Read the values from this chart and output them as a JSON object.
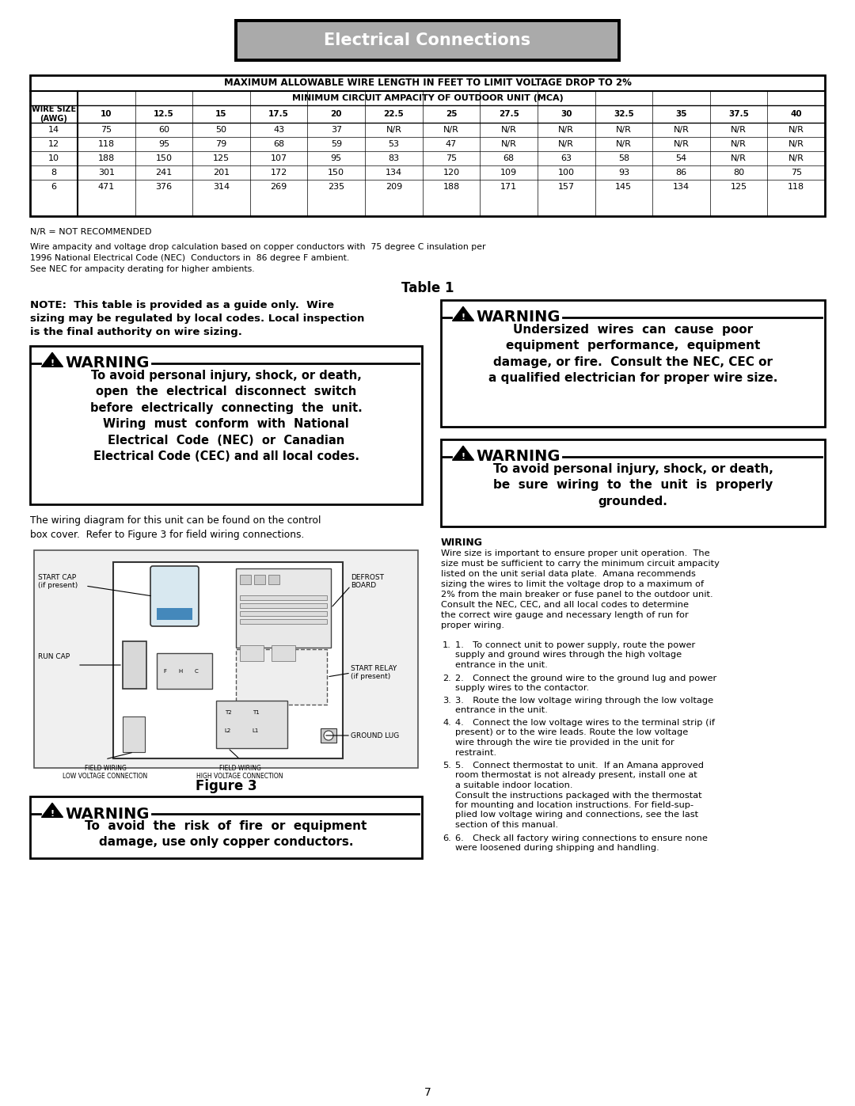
{
  "page_bg": "#ffffff",
  "title_text": "Electrical Connections",
  "table_title": "MAXIMUM ALLOWABLE WIRE LENGTH IN FEET TO LIMIT VOLTAGE DROP TO 2%",
  "table_subtitle": "MINIMUM CIRCUIT AMPACITY OF OUTDOOR UNIT (MCA)",
  "col_headers": [
    "WIRE SIZE\n(AWG)",
    "10",
    "12.5",
    "15",
    "17.5",
    "20",
    "22.5",
    "25",
    "27.5",
    "30",
    "32.5",
    "35",
    "37.5",
    "40"
  ],
  "table_data": [
    [
      "14",
      "75",
      "60",
      "50",
      "43",
      "37",
      "N/R",
      "N/R",
      "N/R",
      "N/R",
      "N/R",
      "N/R",
      "N/R",
      "N/R"
    ],
    [
      "12",
      "118",
      "95",
      "79",
      "68",
      "59",
      "53",
      "47",
      "N/R",
      "N/R",
      "N/R",
      "N/R",
      "N/R",
      "N/R"
    ],
    [
      "10",
      "188",
      "150",
      "125",
      "107",
      "95",
      "83",
      "75",
      "68",
      "63",
      "58",
      "54",
      "N/R",
      "N/R"
    ],
    [
      "8",
      "301",
      "241",
      "201",
      "172",
      "150",
      "134",
      "120",
      "109",
      "100",
      "93",
      "86",
      "80",
      "75"
    ],
    [
      "6",
      "471",
      "376",
      "314",
      "269",
      "235",
      "209",
      "188",
      "171",
      "157",
      "145",
      "134",
      "125",
      "118"
    ]
  ],
  "nr_note": "N/R = NOT RECOMMENDED",
  "footnote1": "Wire ampacity and voltage drop calculation based on copper conductors with  75 degree C insulation per",
  "footnote2": "1996 National Electrical Code (NEC)  Conductors in  86 degree F ambient.",
  "footnote3": "See NEC for ampacity derating for higher ambients.",
  "table1_label": "Table 1",
  "note_text": "NOTE:  This table is provided as a guide only.  Wire\nsizing may be regulated by local codes. Local inspection\nis the final authority on wire sizing.",
  "warn1_body": "To avoid personal injury, shock, or death,\nopen  the  electrical  disconnect  switch\nbefore  electrically  connecting  the  unit.\nWiring  must  conform  with  National\nElectrical  Code  (NEC)  or  Canadian\nElectrical Code (CEC) and all local codes.",
  "warn2_body": "Undersized  wires  can  cause  poor\nequipment  performance,  equipment\ndamage, or fire.  Consult the NEC, CEC or\na qualified electrician for proper wire size.",
  "warn3_body": "To avoid personal injury, shock, or death,\nbe  sure  wiring  to  the  unit  is  properly\ngrounded.",
  "wiring_intro": "The wiring diagram for this unit can be found on the control\nbox cover.  Refer to Figure 3 for field wiring connections.",
  "fig3_label": "Figure 3",
  "warn4_body": "To  avoid  the  risk  of  fire  or  equipment\ndamage, use only copper conductors.",
  "wiring_title": "WIRING",
  "wiring_text": "Wire size is important to ensure proper unit operation.  The\nsize must be sufficient to carry the minimum circuit ampacity\nlisted on the unit serial data plate.  Amana recommends\nsizing the wires to limit the voltage drop to a maximum of\n2% from the main breaker or fuse panel to the outdoor unit.\nConsult the NEC, CEC, and all local codes to determine\nthe correct wire gauge and necessary length of run for\nproper wiring.",
  "numbered_items": [
    "1. To connect unit to power supply, route the power\n  supply and ground wires through the high voltage\n  entrance in the unit.",
    "2. Connect the ground wire to the ground lug and power\n  supply wires to the contactor.",
    "3. Route the low voltage wiring through the low voltage\n  entrance in the unit.",
    "4. Connect the low voltage wires to the terminal strip (if\n  present) or to the wire leads. Route the low voltage\n  wire through the wire tie provided in the unit for\n  restraint.",
    "5. Connect thermostat to unit.  If an Amana approved\n  room thermostat is not already present, install one at\n  a suitable indoor location.\n  Consult the instructions packaged with the thermostat\n  for mounting and location instructions. For field-sup-\n  plied low voltage wiring and connections, see the last\n  section of this manual.",
    "6. Check all factory wiring connections to ensure none\n  were loosened during shipping and handling."
  ],
  "page_number": "7"
}
